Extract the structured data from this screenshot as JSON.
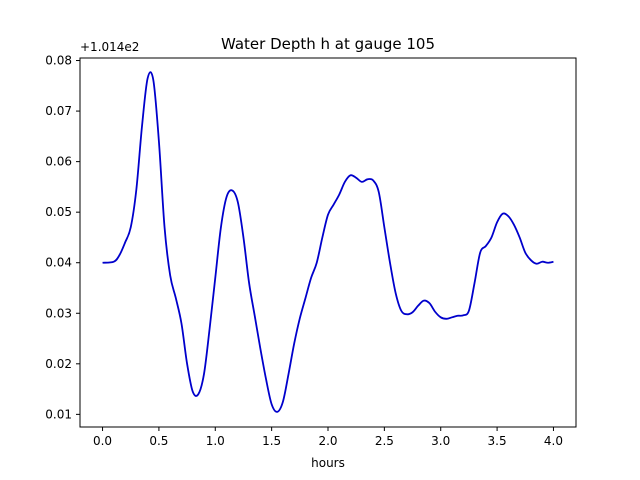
{
  "chart_data": {
    "type": "line",
    "title": "Water Depth h at gauge 105",
    "xlabel": "hours",
    "ylabel": "",
    "offset_text": "+1.014e2",
    "xlim": [
      -0.2,
      4.2
    ],
    "ylim": [
      0.0075,
      0.0805
    ],
    "xticks": [
      0.0,
      0.5,
      1.0,
      1.5,
      2.0,
      2.5,
      3.0,
      3.5,
      4.0
    ],
    "xtick_labels": [
      "0.0",
      "0.5",
      "1.0",
      "1.5",
      "2.0",
      "2.5",
      "3.0",
      "3.5",
      "4.0"
    ],
    "yticks": [
      0.01,
      0.02,
      0.03,
      0.04,
      0.05,
      0.06,
      0.07,
      0.08
    ],
    "ytick_labels": [
      "0.01",
      "0.02",
      "0.03",
      "0.04",
      "0.05",
      "0.06",
      "0.07",
      "0.08"
    ],
    "grid": false,
    "series": [
      {
        "color": "#0000cc",
        "x": [
          0.0,
          0.1,
          0.15,
          0.2,
          0.25,
          0.3,
          0.35,
          0.4,
          0.45,
          0.5,
          0.55,
          0.6,
          0.65,
          0.7,
          0.75,
          0.8,
          0.85,
          0.9,
          0.95,
          1.0,
          1.05,
          1.1,
          1.15,
          1.2,
          1.25,
          1.3,
          1.35,
          1.4,
          1.45,
          1.5,
          1.55,
          1.6,
          1.65,
          1.7,
          1.75,
          1.8,
          1.85,
          1.9,
          1.95,
          2.0,
          2.05,
          2.1,
          2.15,
          2.2,
          2.25,
          2.3,
          2.35,
          2.4,
          2.45,
          2.5,
          2.55,
          2.6,
          2.65,
          2.7,
          2.75,
          2.8,
          2.85,
          2.9,
          2.95,
          3.0,
          3.05,
          3.1,
          3.15,
          3.2,
          3.25,
          3.3,
          3.35,
          3.4,
          3.45,
          3.5,
          3.55,
          3.6,
          3.65,
          3.7,
          3.75,
          3.8,
          3.85,
          3.9,
          3.95,
          4.0
        ],
        "y": [
          0.04,
          0.0402,
          0.0415,
          0.044,
          0.047,
          0.0545,
          0.067,
          0.0765,
          0.0762,
          0.064,
          0.047,
          0.0375,
          0.033,
          0.028,
          0.02,
          0.0145,
          0.014,
          0.018,
          0.027,
          0.037,
          0.047,
          0.053,
          0.0543,
          0.052,
          0.045,
          0.036,
          0.0295,
          0.023,
          0.017,
          0.012,
          0.0105,
          0.0125,
          0.018,
          0.024,
          0.029,
          0.033,
          0.037,
          0.04,
          0.045,
          0.0495,
          0.0515,
          0.0535,
          0.056,
          0.0573,
          0.0568,
          0.056,
          0.0565,
          0.0563,
          0.054,
          0.047,
          0.04,
          0.034,
          0.0305,
          0.0298,
          0.0302,
          0.0315,
          0.0325,
          0.032,
          0.0303,
          0.0292,
          0.0289,
          0.0292,
          0.0295,
          0.0296,
          0.0305,
          0.036,
          0.042,
          0.0433,
          0.045,
          0.048,
          0.0497,
          0.0492,
          0.0475,
          0.045,
          0.042,
          0.0405,
          0.0398,
          0.0402,
          0.04,
          0.0402
        ]
      }
    ]
  }
}
